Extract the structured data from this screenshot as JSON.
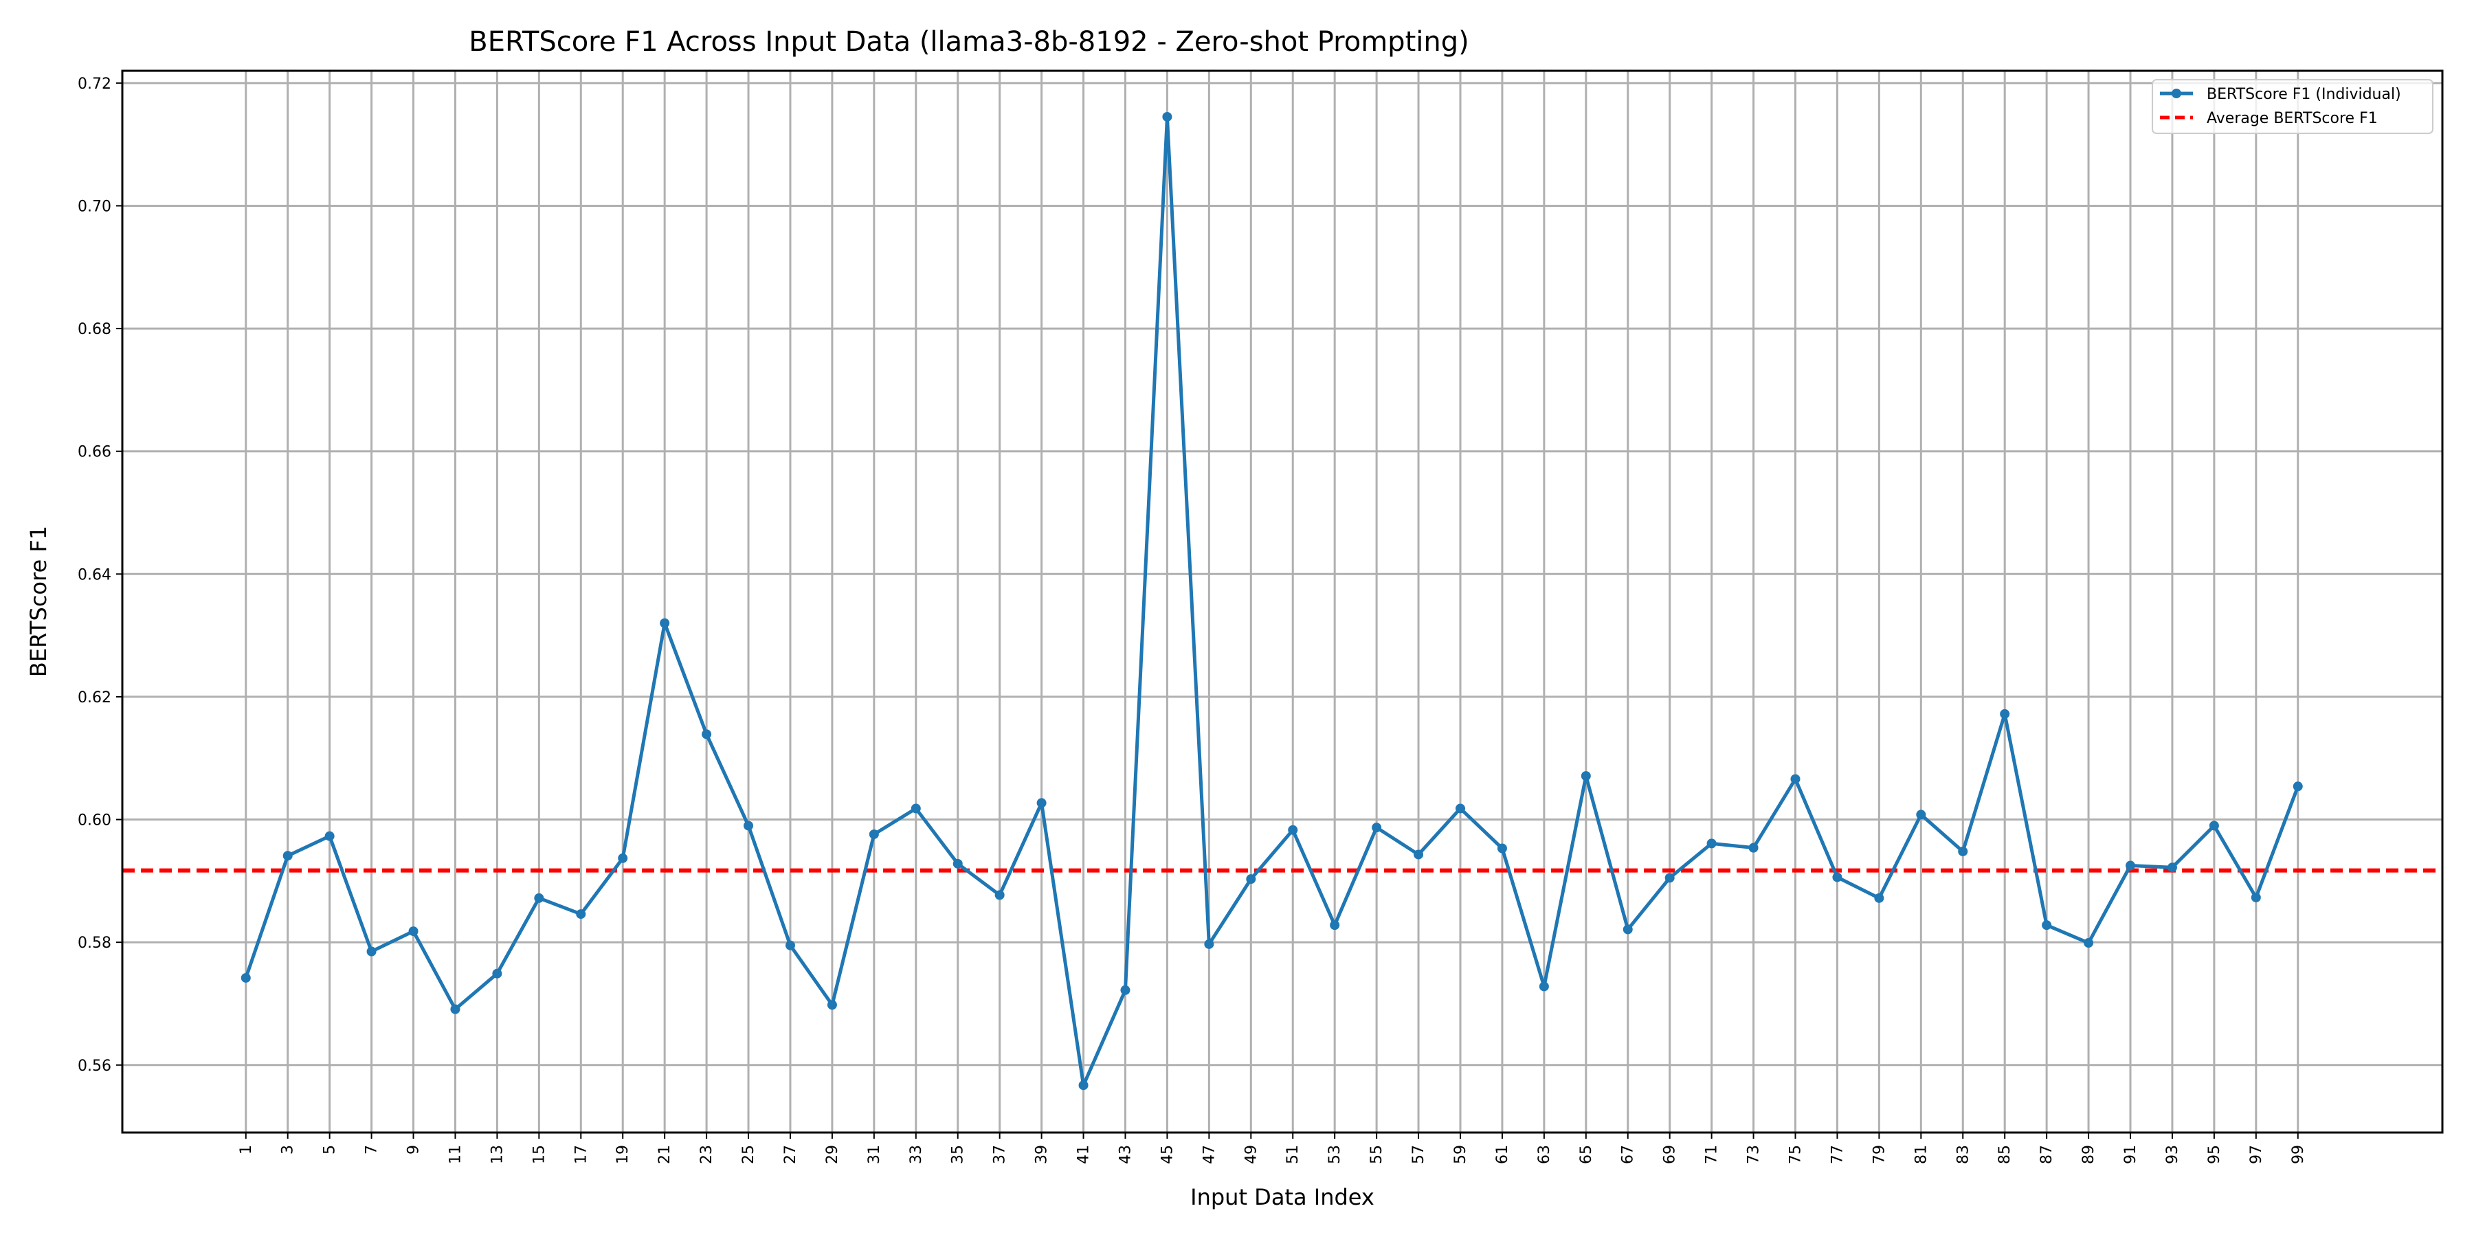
{
  "chart_data": {
    "type": "line",
    "title": "BERTScore F1 Across Input Data (llama3-8b-8192 - Zero-shot Prompting)",
    "xlabel": "Input Data Index",
    "ylabel": "BERTScore F1",
    "xlim": [
      -4.9,
      105.9
    ],
    "ylim": [
      0.549,
      0.722
    ],
    "grid": true,
    "legend_position": "top-right",
    "x_tick_labels": [
      "1",
      "3",
      "5",
      "7",
      "9",
      "11",
      "13",
      "15",
      "17",
      "19",
      "21",
      "23",
      "25",
      "27",
      "29",
      "31",
      "33",
      "35",
      "37",
      "39",
      "41",
      "43",
      "45",
      "47",
      "49",
      "51",
      "53",
      "55",
      "57",
      "59",
      "61",
      "63",
      "65",
      "67",
      "69",
      "71",
      "73",
      "75",
      "77",
      "79",
      "81",
      "83",
      "85",
      "87",
      "89",
      "91",
      "93",
      "95",
      "97",
      "99"
    ],
    "y_tick_labels": [
      "0.56",
      "0.58",
      "0.60",
      "0.62",
      "0.64",
      "0.66",
      "0.68",
      "0.70",
      "0.72"
    ],
    "x": [
      1,
      3,
      5,
      7,
      9,
      11,
      13,
      15,
      17,
      19,
      21,
      23,
      25,
      27,
      29,
      31,
      33,
      35,
      37,
      39,
      41,
      43,
      45,
      47,
      49,
      51,
      53,
      55,
      57,
      59,
      61,
      63,
      65,
      67,
      69,
      71,
      73,
      75,
      77,
      79,
      81,
      83,
      85,
      87,
      89,
      91,
      93,
      95,
      97,
      99
    ],
    "series": [
      {
        "name": "BERTScore F1 (Individual)",
        "color": "#1f77b4",
        "style": "solid-with-markers",
        "values": [
          0.5742,
          0.5941,
          0.5973,
          0.5785,
          0.5818,
          0.5691,
          0.5749,
          0.5872,
          0.5846,
          0.5937,
          0.632,
          0.6139,
          0.599,
          0.5795,
          0.5698,
          0.5976,
          0.6018,
          0.5928,
          0.5877,
          0.6027,
          0.5567,
          0.5722,
          0.7145,
          0.5797,
          0.5903,
          0.5983,
          0.5828,
          0.5987,
          0.5943,
          0.6018,
          0.5953,
          0.5728,
          0.6071,
          0.5821,
          0.5905,
          0.5961,
          0.5954,
          0.6066,
          0.5906,
          0.5872,
          0.6008,
          0.5948,
          0.6172,
          0.5828,
          0.5799,
          0.5925,
          0.5922,
          0.599,
          0.5873,
          0.6054
        ]
      },
      {
        "name": "Average BERTScore F1",
        "color": "#ff0000",
        "style": "dashed",
        "value": 0.5917
      }
    ]
  }
}
